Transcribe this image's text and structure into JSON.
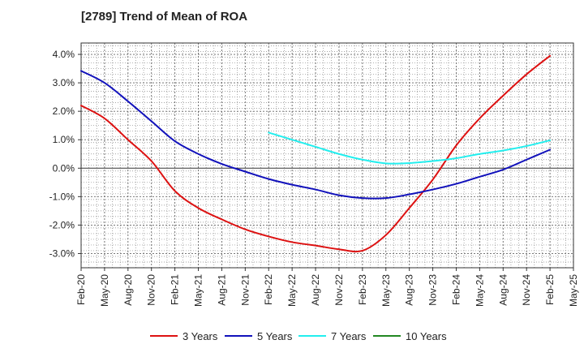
{
  "chart_data": {
    "type": "line",
    "title": "[2789]  Trend of Mean of ROA",
    "xlabel": "",
    "ylabel": "",
    "ylim": [
      -3.5,
      4.4
    ],
    "grid": true,
    "legend_position": "bottom",
    "x_ticks": [
      "Feb-20",
      "May-20",
      "Aug-20",
      "Nov-20",
      "Feb-21",
      "May-21",
      "Aug-21",
      "Nov-21",
      "Feb-22",
      "May-22",
      "Aug-22",
      "Nov-22",
      "Feb-23",
      "May-23",
      "Aug-23",
      "Nov-23",
      "Feb-24",
      "May-24",
      "Aug-24",
      "Nov-24",
      "Feb-25",
      "May-25"
    ],
    "y_ticks": [
      {
        "value": 4.0,
        "label": "4.0%"
      },
      {
        "value": 3.0,
        "label": "3.0%"
      },
      {
        "value": 2.0,
        "label": "2.0%"
      },
      {
        "value": 1.0,
        "label": "1.0%"
      },
      {
        "value": 0.0,
        "label": "0.0%"
      },
      {
        "value": -1.0,
        "label": "-1.0%"
      },
      {
        "value": -2.0,
        "label": "-2.0%"
      },
      {
        "value": -3.0,
        "label": "-3.0%"
      }
    ],
    "series": [
      {
        "name": "3 Years",
        "color": "#dd1111",
        "x": [
          0,
          1,
          2,
          3,
          4,
          5,
          6,
          7,
          8,
          9,
          10,
          11,
          12,
          13,
          14,
          15,
          16,
          17,
          18,
          19,
          20
        ],
        "values": [
          2.2,
          1.75,
          1.0,
          0.25,
          -0.8,
          -1.4,
          -1.8,
          -2.15,
          -2.4,
          -2.6,
          -2.72,
          -2.85,
          -2.9,
          -2.35,
          -1.4,
          -0.4,
          0.8,
          1.75,
          2.55,
          3.3,
          3.95
        ]
      },
      {
        "name": "5 Years",
        "color": "#1111bb",
        "x": [
          0,
          1,
          2,
          3,
          4,
          5,
          6,
          7,
          8,
          9,
          10,
          11,
          12,
          13,
          14,
          15,
          16,
          17,
          18,
          19,
          20
        ],
        "values": [
          3.42,
          3.0,
          2.35,
          1.65,
          0.95,
          0.5,
          0.15,
          -0.12,
          -0.38,
          -0.58,
          -0.75,
          -0.95,
          -1.05,
          -1.05,
          -0.92,
          -0.75,
          -0.55,
          -0.3,
          -0.05,
          0.3,
          0.65
        ]
      },
      {
        "name": "7 Years",
        "color": "#22eeee",
        "x": [
          8,
          9,
          10,
          11,
          12,
          13,
          14,
          15,
          16,
          17,
          18,
          19,
          20
        ],
        "values": [
          1.25,
          1.0,
          0.75,
          0.5,
          0.3,
          0.17,
          0.18,
          0.25,
          0.35,
          0.5,
          0.62,
          0.78,
          0.98
        ]
      },
      {
        "name": "10 Years",
        "color": "#228822",
        "x": [],
        "values": []
      }
    ]
  }
}
